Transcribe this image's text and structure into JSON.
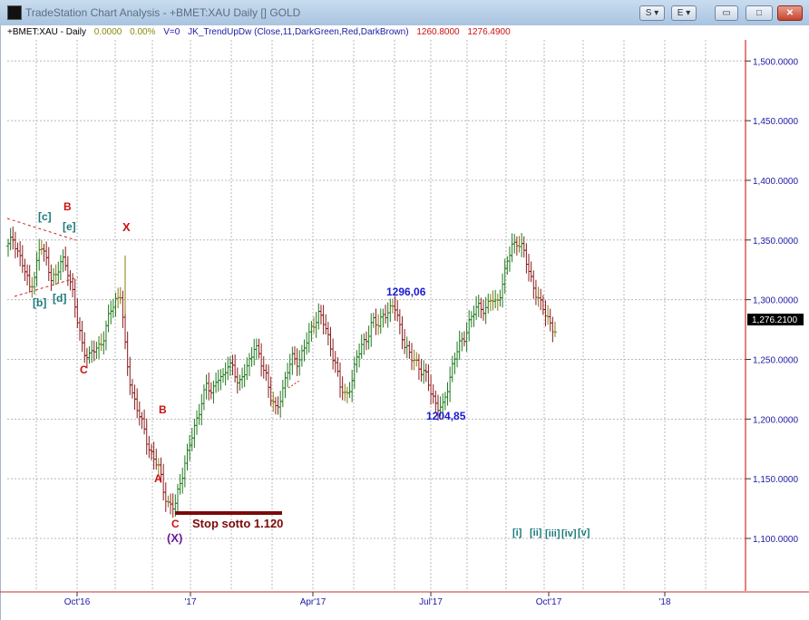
{
  "window": {
    "title": "TradeStation Chart Analysis - +BMET:XAU Daily [] GOLD",
    "buttons": {
      "s": "S ▾",
      "e": "E ▾",
      "minimize": "▭",
      "maximize": "□",
      "close": "✕"
    }
  },
  "info": {
    "symbol": "+BMET:XAU - Daily",
    "chg": "0.0000",
    "pct": "0.00%",
    "vol": "V=0",
    "indicator": "JK_TrendUpDw (Close,11,DarkGreen,Red,DarkBrown)",
    "v1": "1260.8000",
    "v2": "1276.4900"
  },
  "colors": {
    "up": "#1f7a1f",
    "down": "#8a1a1a",
    "neutral": "#8a7a10",
    "axis": "#1a1aa6",
    "grid": "#b8b8b8",
    "vline": "#cc0000"
  },
  "chart_data": {
    "type": "bar",
    "title": "",
    "ylim": [
      1060,
      1550
    ],
    "y_ticks": [
      {
        "value": 1500,
        "label": "1,500.0000"
      },
      {
        "value": 1450,
        "label": "1,450.0000"
      },
      {
        "value": 1400,
        "label": "1,400.0000"
      },
      {
        "value": 1350,
        "label": "1,350.0000"
      },
      {
        "value": 1300,
        "label": "1,300.0000"
      },
      {
        "value": 1250,
        "label": "1,250.0000"
      },
      {
        "value": 1200,
        "label": "1,200.0000"
      },
      {
        "value": 1150,
        "label": "1,150.0000"
      },
      {
        "value": 1100,
        "label": "1,100.0000"
      }
    ],
    "x_labels": [
      "Oct'16",
      "'17",
      "Apr'17",
      "Jul'17",
      "Oct'17",
      "'18"
    ],
    "last_price": "1,276.2100",
    "key_points": [
      {
        "label": "1296,06",
        "value": 1296.06
      },
      {
        "label": "1204,85",
        "value": 1204.85
      }
    ],
    "price_path": [
      1345,
      1352,
      1338,
      1325,
      1310,
      1322,
      1346,
      1335,
      1320,
      1318,
      1335,
      1328,
      1305,
      1280,
      1260,
      1250,
      1258,
      1262,
      1270,
      1290,
      1300,
      1305,
      1250,
      1225,
      1210,
      1195,
      1180,
      1168,
      1160,
      1140,
      1128,
      1125,
      1145,
      1165,
      1180,
      1196,
      1215,
      1228,
      1220,
      1238,
      1232,
      1245,
      1246,
      1226,
      1238,
      1250,
      1262,
      1248,
      1240,
      1218,
      1205,
      1222,
      1240,
      1250,
      1248,
      1258,
      1268,
      1280,
      1290,
      1278,
      1262,
      1248,
      1225,
      1218,
      1232,
      1250,
      1262,
      1270,
      1282,
      1278,
      1290,
      1288,
      1296,
      1280,
      1260,
      1252,
      1250,
      1240,
      1235,
      1222,
      1210,
      1208,
      1228,
      1248,
      1260,
      1268,
      1282,
      1290,
      1295,
      1292,
      1300,
      1296,
      1310,
      1330,
      1345,
      1350,
      1342,
      1325,
      1312,
      1298,
      1290,
      1282,
      1273
    ],
    "annotations": [
      {
        "text": "[c]",
        "color": "#1a7a7a"
      },
      {
        "text": "[b]",
        "color": "#1a7a7a"
      },
      {
        "text": "[d]",
        "color": "#1a7a7a"
      },
      {
        "text": "[e]",
        "color": "#1a7a7a"
      },
      {
        "text": "B",
        "color": "#cc1111"
      },
      {
        "text": "X",
        "color": "#cc1111"
      },
      {
        "text": "C",
        "color": "#cc1111"
      },
      {
        "text": "B",
        "color": "#cc1111"
      },
      {
        "text": "A",
        "color": "#cc1111"
      },
      {
        "text": "C",
        "color": "#cc1111"
      },
      {
        "text": "(X)",
        "color": "#6a1a9a"
      },
      {
        "text": "Stop sotto 1.120",
        "color": "#7a0a0a"
      },
      {
        "text": "[i]",
        "color": "#1a7a7a"
      },
      {
        "text": "[ii]",
        "color": "#1a7a7a"
      },
      {
        "text": "[iii]",
        "color": "#1a7a7a"
      },
      {
        "text": "[iv]",
        "color": "#1a7a7a"
      },
      {
        "text": "[v]",
        "color": "#1a7a7a"
      }
    ]
  }
}
